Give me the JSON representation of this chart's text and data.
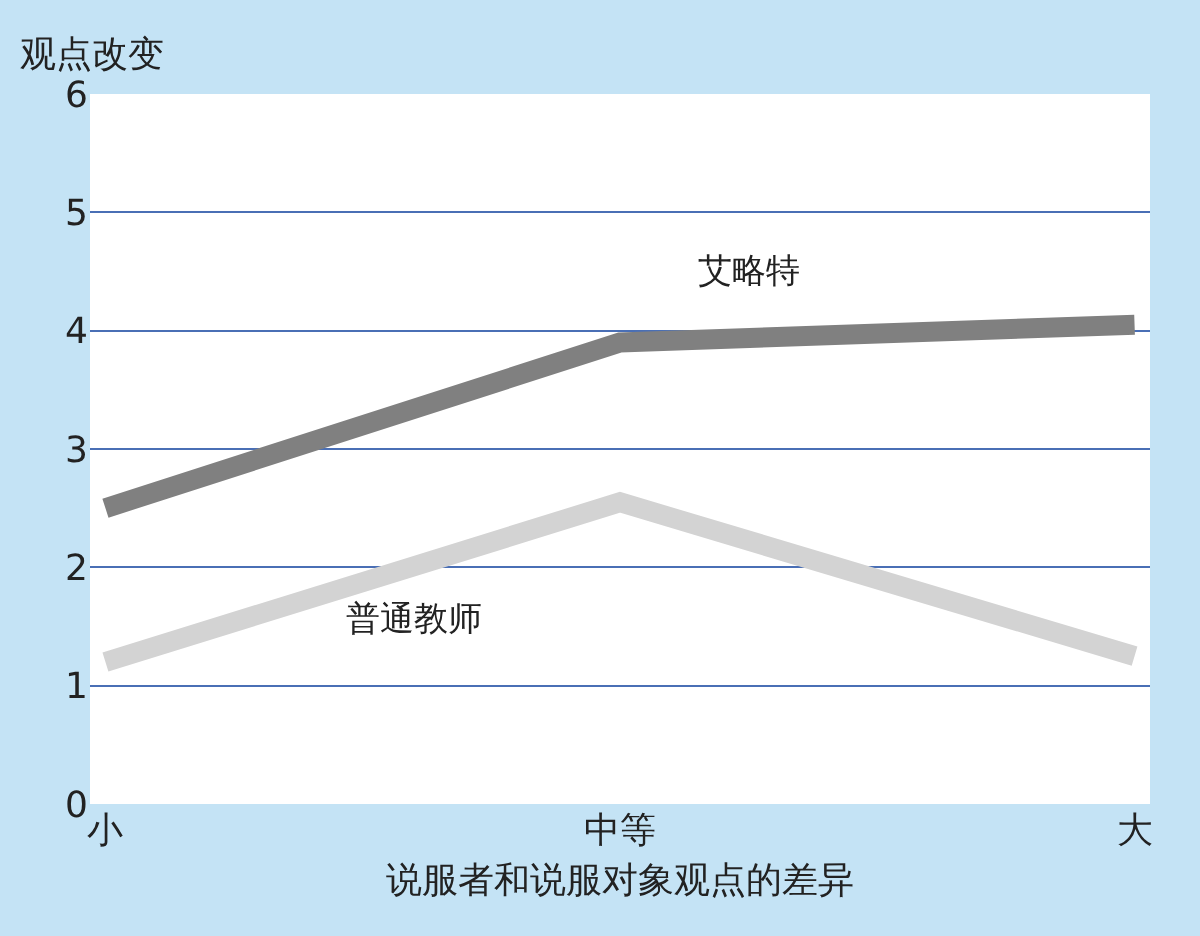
{
  "chart_data": {
    "type": "line",
    "xlabel": "说服者和说服对象观点的差异",
    "ylabel": "观点改变",
    "categories": [
      "小",
      "中等",
      "大"
    ],
    "series": [
      {
        "name": "艾略特",
        "color": "#808080",
        "values": [
          2.5,
          3.9,
          4.05
        ]
      },
      {
        "name": "普通教师",
        "color": "#d3d3d3",
        "values": [
          1.2,
          2.55,
          1.25
        ]
      }
    ],
    "ylim": [
      0,
      6
    ],
    "yticks": [
      0,
      1,
      2,
      3,
      4,
      5,
      6
    ],
    "grid": "y",
    "legend": false,
    "marker": "none",
    "line_style": "solid"
  }
}
